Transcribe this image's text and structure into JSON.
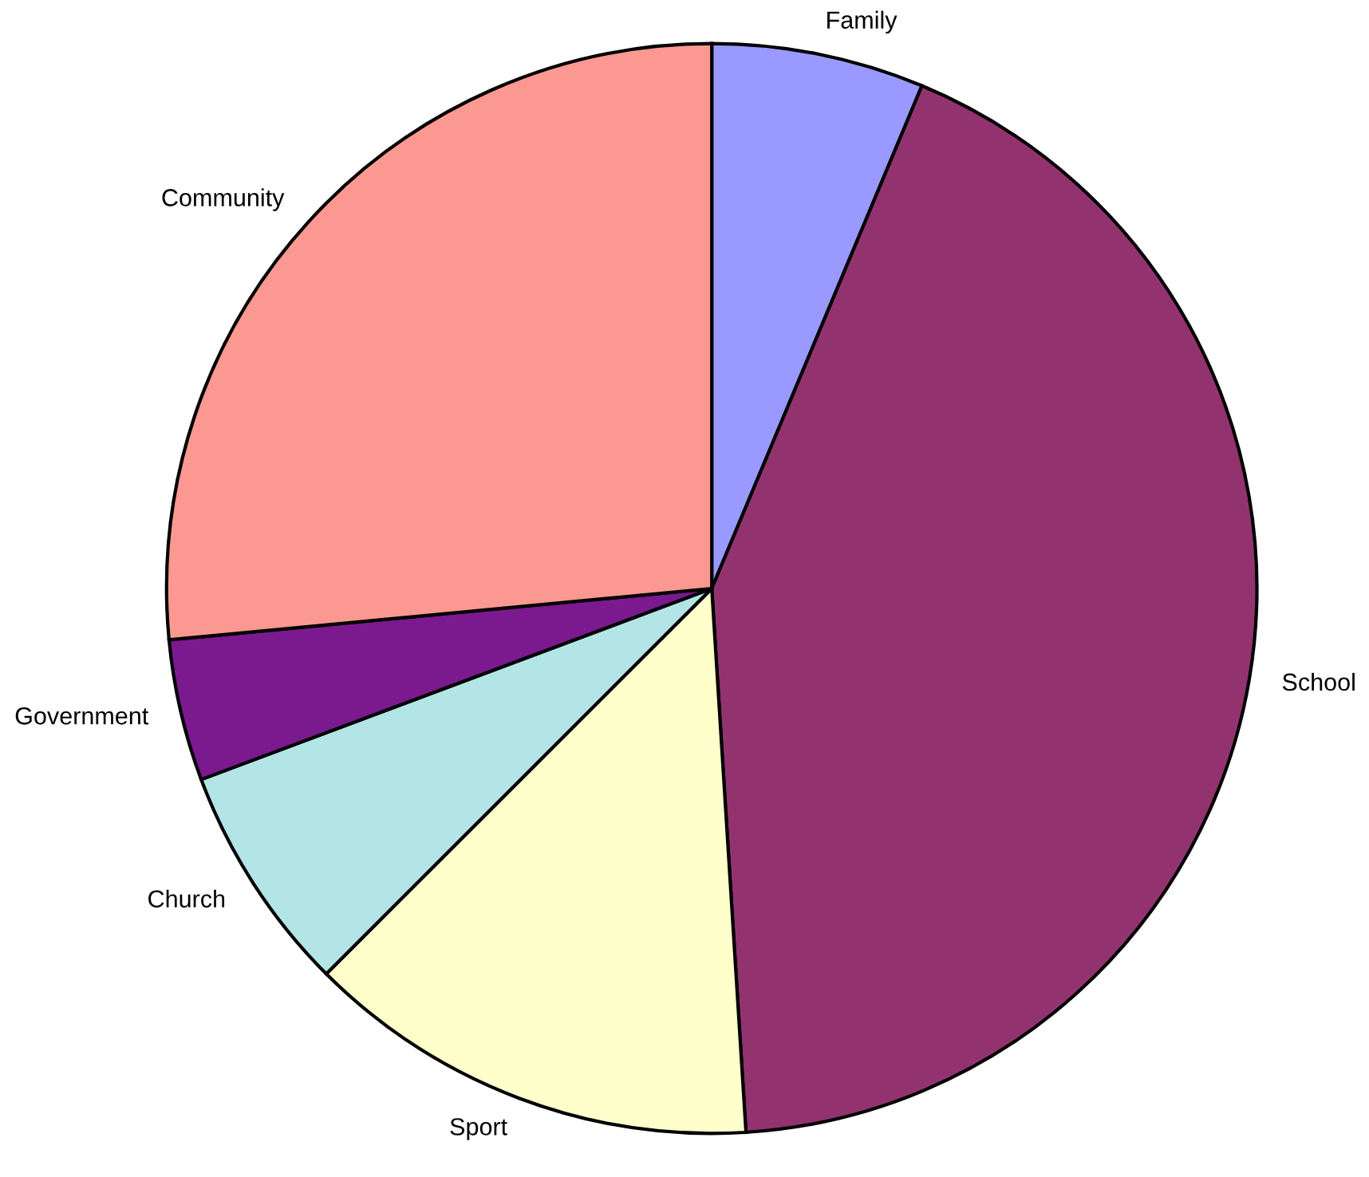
{
  "chart_data": {
    "type": "pie",
    "categories": [
      "Family",
      "School",
      "Sport",
      "Church",
      "Government",
      "Community"
    ],
    "values": [
      6.3,
      42.7,
      13.5,
      6.8,
      4.2,
      26.5
    ],
    "colors": [
      "#9999ff",
      "#923370",
      "#ffffcc",
      "#b3e4e6",
      "#7b198f",
      "#fb9892"
    ],
    "legend": false
  }
}
